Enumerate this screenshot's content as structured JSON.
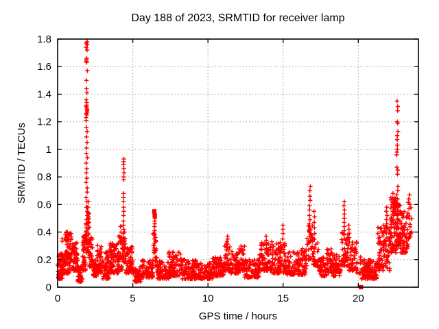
{
  "chart_data": {
    "type": "scatter",
    "title": "Day 188 of 2023, SRMTID for receiver lamp",
    "xlabel": "GPS time / hours",
    "ylabel": "SRMTID / TECUs",
    "xlim": [
      0,
      24
    ],
    "ylim": [
      0,
      1.8
    ],
    "xticks": [
      0,
      5,
      10,
      15,
      20
    ],
    "yticks": [
      {
        "v": 0,
        "label": "0"
      },
      {
        "v": 0.2,
        "label": "0.2"
      },
      {
        "v": 0.4,
        "label": "0.4"
      },
      {
        "v": 0.6,
        "label": "0.6"
      },
      {
        "v": 0.8,
        "label": "0.8"
      },
      {
        "v": 1.0,
        "label": "1"
      },
      {
        "v": 1.2,
        "label": "1.2"
      },
      {
        "v": 1.4,
        "label": "1.4"
      },
      {
        "v": 1.6,
        "label": "1.6"
      },
      {
        "v": 1.8,
        "label": "1.8"
      }
    ],
    "grid": true,
    "legend": "none",
    "marker": "plus",
    "marker_color": "#ff0000",
    "square_marker_color": "#ff0000",
    "grid_color": "#aaaaaa",
    "axis_color": "#000000",
    "spike_columns": [
      {
        "x": 1.93,
        "w": 0.1,
        "values": [
          1.78,
          1.77,
          1.76,
          1.74,
          1.72,
          1.66,
          1.65,
          1.64,
          1.63,
          1.57,
          1.5,
          1.44,
          1.41,
          1.36,
          1.34,
          1.32,
          1.31,
          1.3,
          1.29,
          1.28,
          1.27,
          1.26,
          1.25,
          1.23,
          1.21,
          1.16,
          1.13,
          1.09,
          1.05,
          1.01,
          0.97,
          0.94,
          0.9,
          0.86,
          0.83,
          0.79,
          0.76,
          0.72,
          0.69,
          0.65,
          0.62,
          0.58,
          0.55,
          0.52,
          0.49,
          0.46,
          0.43,
          0.4,
          0.37,
          0.35,
          0.33,
          0.31
        ]
      },
      {
        "x": 2.03,
        "w": 0.06,
        "values": [
          0.62,
          0.58,
          0.54,
          0.5,
          0.46,
          0.42,
          0.38,
          0.34
        ]
      },
      {
        "x": 0.55,
        "w": 0.08,
        "values": [
          0.4,
          0.38,
          0.36,
          0.34
        ]
      },
      {
        "x": 4.19,
        "w": 0.05,
        "values": [
          0.44,
          0.4,
          0.36,
          0.32
        ]
      },
      {
        "x": 4.4,
        "w": 0.07,
        "values": [
          0.93,
          0.91,
          0.89,
          0.86,
          0.83,
          0.8,
          0.78,
          0.68,
          0.65,
          0.62,
          0.58,
          0.55,
          0.52,
          0.48,
          0.45,
          0.42,
          0.39,
          0.36,
          0.33,
          0.3
        ]
      },
      {
        "x": 6.45,
        "w": 0.05,
        "values": [
          0.5,
          0.48,
          0.46,
          0.44,
          0.41,
          0.38,
          0.35,
          0.32
        ]
      },
      {
        "x": 11.28,
        "w": 0.08,
        "values": [
          0.37,
          0.35,
          0.33,
          0.31,
          0.29,
          0.27
        ]
      },
      {
        "x": 13.9,
        "w": 0.08,
        "values": [
          0.37,
          0.34,
          0.31,
          0.28
        ]
      },
      {
        "x": 14.98,
        "w": 0.06,
        "values": [
          0.45,
          0.42,
          0.39,
          0.35,
          0.31
        ]
      },
      {
        "x": 16.78,
        "w": 0.07,
        "values": [
          0.73,
          0.7,
          0.66,
          0.63,
          0.59,
          0.56,
          0.52,
          0.49,
          0.46,
          0.43,
          0.4,
          0.37,
          0.34
        ]
      },
      {
        "x": 17.08,
        "w": 0.05,
        "values": [
          0.55,
          0.51,
          0.47,
          0.43,
          0.39
        ]
      },
      {
        "x": 19.07,
        "w": 0.06,
        "values": [
          0.62,
          0.59,
          0.56,
          0.53,
          0.5,
          0.47,
          0.44,
          0.41,
          0.38,
          0.35
        ]
      },
      {
        "x": 19.38,
        "w": 0.05,
        "values": [
          0.45,
          0.42,
          0.39,
          0.36
        ]
      },
      {
        "x": 21.9,
        "w": 0.08,
        "values": [
          0.58,
          0.55,
          0.52,
          0.49,
          0.46
        ]
      },
      {
        "x": 22.32,
        "w": 0.1,
        "values": [
          0.68,
          0.64,
          0.61,
          0.58,
          0.55,
          0.52,
          0.49,
          0.46
        ]
      },
      {
        "x": 22.6,
        "w": 0.1,
        "values": [
          1.35,
          1.31,
          1.28,
          1.2,
          1.19,
          1.13,
          1.1,
          1.07,
          1.03,
          1.0,
          0.98,
          0.96,
          0.87,
          0.85,
          0.82,
          0.73,
          0.7,
          0.67,
          0.64,
          0.61,
          0.58,
          0.55,
          0.52,
          0.49,
          0.46,
          0.43
        ]
      },
      {
        "x": 23.38,
        "w": 0.08,
        "values": [
          0.67,
          0.64,
          0.6,
          0.57
        ]
      }
    ],
    "square_points": [
      {
        "x": 6.43,
        "y": 0.55
      },
      {
        "x": 6.46,
        "y": 0.52
      },
      {
        "x": 20.18,
        "y": 0.0
      }
    ],
    "baseline_segments": [
      {
        "x0": 0.0,
        "x1": 0.35,
        "lo": 0.06,
        "hi": 0.26,
        "n": 50
      },
      {
        "x0": 0.3,
        "x1": 0.95,
        "lo": 0.1,
        "hi": 0.4,
        "n": 90
      },
      {
        "x0": 0.95,
        "x1": 1.35,
        "lo": 0.12,
        "hi": 0.33,
        "n": 55
      },
      {
        "x0": 1.35,
        "x1": 1.65,
        "lo": 0.04,
        "hi": 0.16,
        "n": 40
      },
      {
        "x0": 1.65,
        "x1": 1.88,
        "lo": 0.12,
        "hi": 0.38,
        "n": 40
      },
      {
        "x0": 1.88,
        "x1": 2.1,
        "lo": 0.25,
        "hi": 0.6,
        "n": 30
      },
      {
        "x0": 2.1,
        "x1": 2.35,
        "lo": 0.15,
        "hi": 0.4,
        "n": 30
      },
      {
        "x0": 2.35,
        "x1": 2.6,
        "lo": 0.08,
        "hi": 0.2,
        "n": 35
      },
      {
        "x0": 2.6,
        "x1": 2.95,
        "lo": 0.1,
        "hi": 0.32,
        "n": 45
      },
      {
        "x0": 2.95,
        "x1": 3.45,
        "lo": 0.06,
        "hi": 0.28,
        "n": 55
      },
      {
        "x0": 3.45,
        "x1": 4.05,
        "lo": 0.1,
        "hi": 0.32,
        "n": 70
      },
      {
        "x0": 4.05,
        "x1": 4.3,
        "lo": 0.12,
        "hi": 0.38,
        "n": 30
      },
      {
        "x0": 4.3,
        "x1": 4.55,
        "lo": 0.18,
        "hi": 0.4,
        "n": 30
      },
      {
        "x0": 4.55,
        "x1": 5.1,
        "lo": 0.1,
        "hi": 0.3,
        "n": 55
      },
      {
        "x0": 5.1,
        "x1": 5.55,
        "lo": 0.04,
        "hi": 0.15,
        "n": 45
      },
      {
        "x0": 5.55,
        "x1": 6.35,
        "lo": 0.07,
        "hi": 0.2,
        "n": 70
      },
      {
        "x0": 6.35,
        "x1": 6.6,
        "lo": 0.15,
        "hi": 0.42,
        "n": 25
      },
      {
        "x0": 6.6,
        "x1": 7.4,
        "lo": 0.06,
        "hi": 0.19,
        "n": 75
      },
      {
        "x0": 7.4,
        "x1": 8.3,
        "lo": 0.08,
        "hi": 0.26,
        "n": 85
      },
      {
        "x0": 8.3,
        "x1": 9.2,
        "lo": 0.06,
        "hi": 0.2,
        "n": 85
      },
      {
        "x0": 9.2,
        "x1": 10.3,
        "lo": 0.06,
        "hi": 0.18,
        "n": 100
      },
      {
        "x0": 10.3,
        "x1": 11.05,
        "lo": 0.08,
        "hi": 0.22,
        "n": 70
      },
      {
        "x0": 11.05,
        "x1": 11.5,
        "lo": 0.12,
        "hi": 0.33,
        "n": 45
      },
      {
        "x0": 11.5,
        "x1": 12.05,
        "lo": 0.1,
        "hi": 0.26,
        "n": 55
      },
      {
        "x0": 12.05,
        "x1": 12.45,
        "lo": 0.12,
        "hi": 0.3,
        "n": 40
      },
      {
        "x0": 12.45,
        "x1": 13.4,
        "lo": 0.07,
        "hi": 0.2,
        "n": 90
      },
      {
        "x0": 13.4,
        "x1": 14.25,
        "lo": 0.12,
        "hi": 0.33,
        "n": 80
      },
      {
        "x0": 14.25,
        "x1": 15.15,
        "lo": 0.1,
        "hi": 0.33,
        "n": 85
      },
      {
        "x0": 15.15,
        "x1": 16.55,
        "lo": 0.09,
        "hi": 0.28,
        "n": 120
      },
      {
        "x0": 16.55,
        "x1": 17.0,
        "lo": 0.2,
        "hi": 0.45,
        "n": 35
      },
      {
        "x0": 17.0,
        "x1": 17.35,
        "lo": 0.15,
        "hi": 0.35,
        "n": 30
      },
      {
        "x0": 17.35,
        "x1": 17.9,
        "lo": 0.08,
        "hi": 0.24,
        "n": 45
      },
      {
        "x0": 17.9,
        "x1": 18.25,
        "lo": 0.1,
        "hi": 0.32,
        "n": 30
      },
      {
        "x0": 18.25,
        "x1": 18.85,
        "lo": 0.08,
        "hi": 0.24,
        "n": 50
      },
      {
        "x0": 18.85,
        "x1": 19.35,
        "lo": 0.15,
        "hi": 0.4,
        "n": 45
      },
      {
        "x0": 19.35,
        "x1": 19.9,
        "lo": 0.12,
        "hi": 0.33,
        "n": 50
      },
      {
        "x0": 19.9,
        "x1": 20.2,
        "lo": 0.1,
        "hi": 0.22,
        "n": 12
      },
      {
        "x0": 20.2,
        "x1": 21.3,
        "lo": 0.06,
        "hi": 0.2,
        "n": 110
      },
      {
        "x0": 21.3,
        "x1": 22.15,
        "lo": 0.12,
        "hi": 0.45,
        "n": 95
      },
      {
        "x0": 22.15,
        "x1": 22.55,
        "lo": 0.25,
        "hi": 0.65,
        "n": 70
      },
      {
        "x0": 22.55,
        "x1": 22.8,
        "lo": 0.3,
        "hi": 0.6,
        "n": 45
      },
      {
        "x0": 22.8,
        "x1": 23.3,
        "lo": 0.25,
        "hi": 0.55,
        "n": 60
      },
      {
        "x0": 23.3,
        "x1": 23.55,
        "lo": 0.35,
        "hi": 0.68,
        "n": 20
      }
    ]
  }
}
